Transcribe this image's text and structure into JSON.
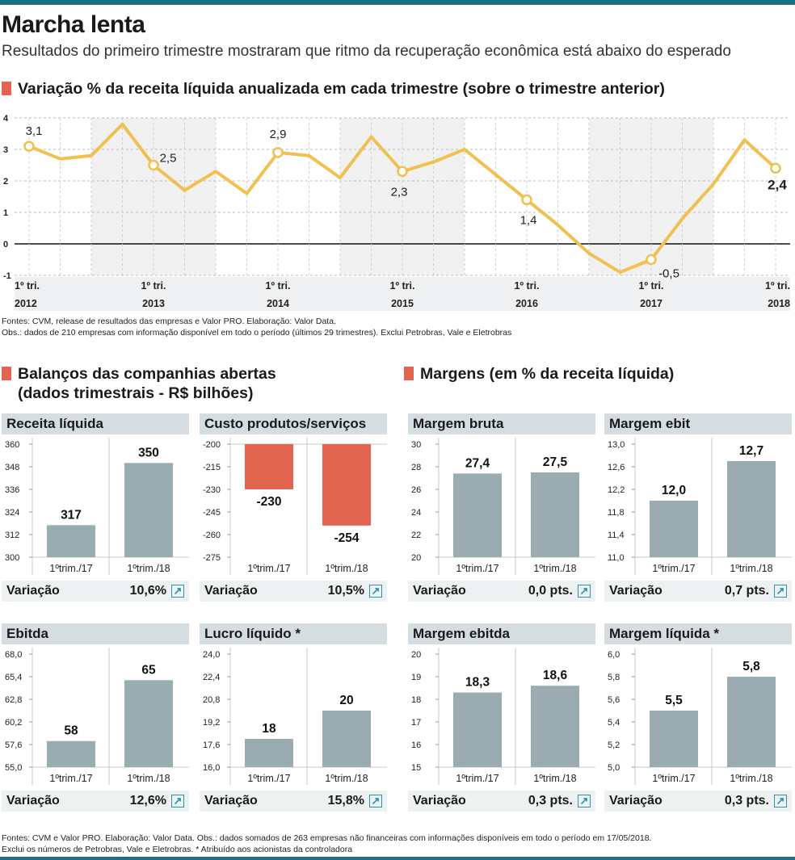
{
  "header": {
    "title": "Marcha lenta",
    "subtitle": "Resultados do primeiro trimestre mostraram que ritmo da recuperação econômica está abaixo do esperado"
  },
  "colors": {
    "accent_bar": "#1b6f86",
    "section_square": "#e0644f",
    "line": "#f0c050",
    "bar_gray": "#9aabb1",
    "bar_red": "#e0644f",
    "arrow": "#2b92a8"
  },
  "line_section": {
    "heading": "Variação % da receita líquida anualizada em cada trimestre (sobre o trimestre anterior)",
    "notes": [
      "Fontes: CVM, release de resultados das empresas e Valor PRO. Elaboração: Valor Data.",
      "Obs.: dados de 210 empresas com informação disponível em todo o período (últimos 29 trimestres). Exclui Petrobras, Vale e Eletrobras"
    ]
  },
  "chart_data": [
    {
      "type": "line",
      "title": "Variação % da receita líquida anualizada em cada trimestre (sobre o trimestre anterior)",
      "x_tick_labels": [
        {
          "q": "1º tri.",
          "year": "2012"
        },
        {
          "q": "1º tri.",
          "year": "2013"
        },
        {
          "q": "1º tri.",
          "year": "2014"
        },
        {
          "q": "1º tri.",
          "year": "2015"
        },
        {
          "q": "1º tri.",
          "year": "2016"
        },
        {
          "q": "1º tri.",
          "year": "2017"
        },
        {
          "q": "1º tri.",
          "year": "2018"
        }
      ],
      "y_ticks": [
        "4",
        "3",
        "2",
        "1",
        "0",
        "-1"
      ],
      "ylim": [
        -1,
        4
      ],
      "values": [
        3.1,
        2.7,
        2.8,
        3.8,
        2.5,
        1.7,
        2.3,
        1.6,
        2.9,
        2.8,
        2.1,
        3.4,
        2.3,
        2.6,
        3.0,
        2.2,
        1.4,
        0.6,
        -0.3,
        -0.9,
        -0.5,
        0.8,
        1.9,
        3.3,
        2.4
      ],
      "data_labels": [
        {
          "index": 0,
          "text": "3,1"
        },
        {
          "index": 4,
          "text": "2,5"
        },
        {
          "index": 8,
          "text": "2,9"
        },
        {
          "index": 12,
          "text": "2,3"
        },
        {
          "index": 16,
          "text": "1,4"
        },
        {
          "index": 20,
          "text": "-0,5"
        },
        {
          "index": 24,
          "text": "2,4"
        }
      ],
      "grid": true
    },
    {
      "type": "bar",
      "group": "Balanços das companhias abertas",
      "title": "Receita líquida",
      "categories": [
        "1ºtrim./17",
        "1ºtrim./18"
      ],
      "values": [
        317,
        350
      ],
      "labels": [
        "317",
        "350"
      ],
      "ylim": [
        300,
        360
      ],
      "y_ticks": [
        "360",
        "348",
        "336",
        "324",
        "312",
        "300"
      ],
      "variation": "10,6%",
      "color": "#9aabb1"
    },
    {
      "type": "bar",
      "group": "Balanços das companhias abertas",
      "title": "Custo produtos/serviços",
      "categories": [
        "1ºtrim./17",
        "1ºtrim./18"
      ],
      "values": [
        -230,
        -254
      ],
      "labels": [
        "-230",
        "-254"
      ],
      "ylim": [
        -275,
        -200
      ],
      "y_ticks": [
        "-200",
        "-215",
        "-230",
        "-245",
        "-260",
        "-275"
      ],
      "variation": "10,5%",
      "color": "#e0644f"
    },
    {
      "type": "bar",
      "group": "Balanços das companhias abertas",
      "title": "Ebitda",
      "categories": [
        "1ºtrim./17",
        "1ºtrim./18"
      ],
      "values": [
        58,
        65
      ],
      "labels": [
        "58",
        "65"
      ],
      "ylim": [
        55,
        68
      ],
      "y_ticks": [
        "68,0",
        "65,4",
        "62,8",
        "60,2",
        "57,6",
        "55,0"
      ],
      "variation": "12,6%",
      "color": "#9aabb1"
    },
    {
      "type": "bar",
      "group": "Balanços das companhias abertas",
      "title": "Lucro líquido *",
      "categories": [
        "1ºtrim./17",
        "1ºtrim./18"
      ],
      "values": [
        18,
        20
      ],
      "labels": [
        "18",
        "20"
      ],
      "ylim": [
        16,
        24
      ],
      "y_ticks": [
        "24,0",
        "22,4",
        "20,8",
        "19,2",
        "17,6",
        "16,0"
      ],
      "variation": "15,8%",
      "color": "#9aabb1"
    },
    {
      "type": "bar",
      "group": "Margens (em % da receita líquida)",
      "title": "Margem bruta",
      "categories": [
        "1ºtrim./17",
        "1ºtrim./18"
      ],
      "values": [
        27.4,
        27.5
      ],
      "labels": [
        "27,4",
        "27,5"
      ],
      "ylim": [
        20,
        30
      ],
      "y_ticks": [
        "30",
        "28",
        "26",
        "24",
        "22",
        "20"
      ],
      "variation": "0,0 pts.",
      "color": "#9aabb1"
    },
    {
      "type": "bar",
      "group": "Margens (em % da receita líquida)",
      "title": "Margem ebit",
      "categories": [
        "1ºtrim./17",
        "1ºtrim./18"
      ],
      "values": [
        12.0,
        12.7
      ],
      "labels": [
        "12,0",
        "12,7"
      ],
      "ylim": [
        11,
        13
      ],
      "y_ticks": [
        "13,0",
        "12,6",
        "12,2",
        "11,8",
        "11,4",
        "11,0"
      ],
      "variation": "0,7 pts.",
      "color": "#9aabb1"
    },
    {
      "type": "bar",
      "group": "Margens (em % da receita líquida)",
      "title": "Margem ebitda",
      "categories": [
        "1ºtrim./17",
        "1ºtrim./18"
      ],
      "values": [
        18.3,
        18.6
      ],
      "labels": [
        "18,3",
        "18,6"
      ],
      "ylim": [
        15,
        20
      ],
      "y_ticks": [
        "20",
        "19",
        "18",
        "17",
        "16",
        "15"
      ],
      "variation": "0,3 pts.",
      "color": "#9aabb1"
    },
    {
      "type": "bar",
      "group": "Margens (em % da receita líquida)",
      "title": "Margem líquida *",
      "categories": [
        "1ºtrim./17",
        "1ºtrim./18"
      ],
      "values": [
        5.5,
        5.8
      ],
      "labels": [
        "5,5",
        "5,8"
      ],
      "ylim": [
        5.0,
        6.0
      ],
      "y_ticks": [
        "6,0",
        "5,8",
        "5,6",
        "5,4",
        "5,2",
        "5,0"
      ],
      "variation": "0,3 pts.",
      "color": "#9aabb1"
    }
  ],
  "balances_section": {
    "heading_line1": "Balanços das companhias abertas",
    "heading_line2": "(dados trimestrais - R$ bilhões)"
  },
  "margins_section": {
    "heading": "Margens (em % da receita líquida)"
  },
  "variation_label": "Variação",
  "up_arrow_icon": "↗",
  "footer": {
    "notes": [
      "Fontes: CVM e Valor PRO. Elaboração: Valor Data. Obs.: dados somados de 263 empresas não financeiras com informações disponíveis em todo o período em 17/05/2018.",
      "Exclui os números de Petrobras, Vale e Eletrobras. * Atribuído aos acionistas da controladora"
    ]
  }
}
